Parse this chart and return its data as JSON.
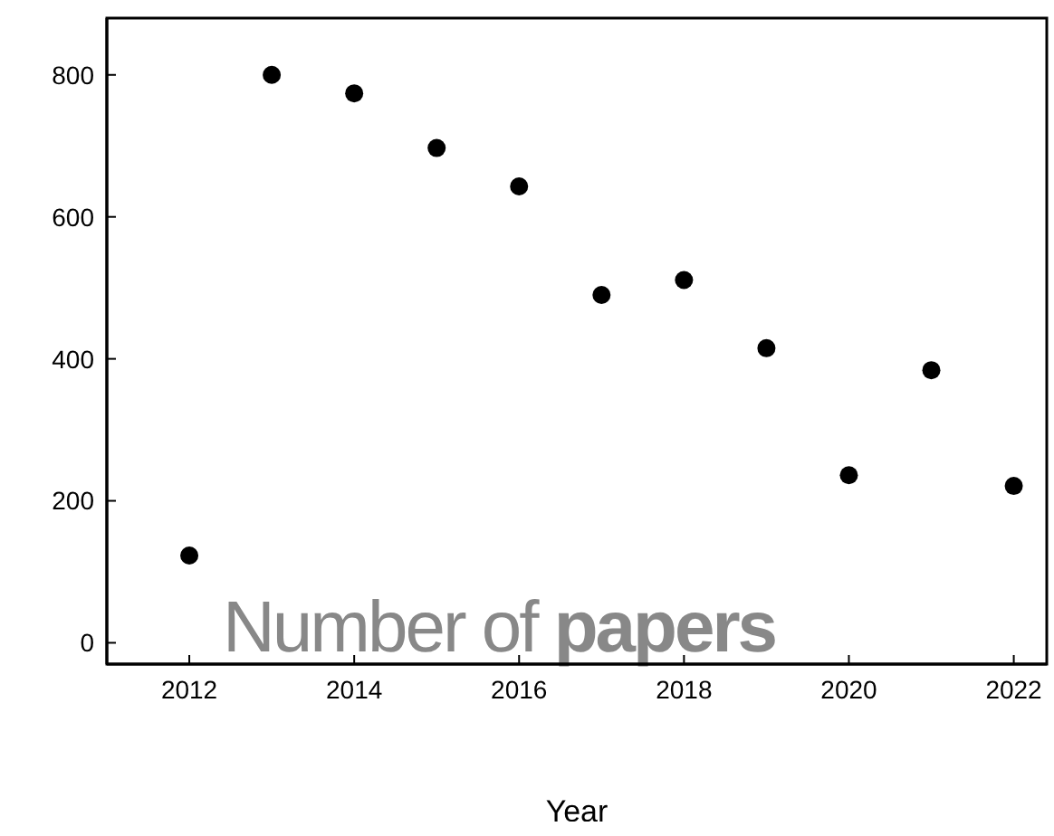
{
  "chart_data": {
    "type": "scatter",
    "xlabel": "Year",
    "x": [
      2012,
      2013,
      2014,
      2015,
      2016,
      2017,
      2018,
      2019,
      2020,
      2021,
      2022
    ],
    "series": [
      {
        "color": "#000000",
        "values": [
          123,
          800,
          774,
          697,
          643,
          490,
          511,
          415,
          236,
          384,
          221
        ]
      }
    ],
    "xlim": [
      2011,
      2022.4
    ],
    "xticks": [
      2012,
      2014,
      2016,
      2018,
      2020,
      2022
    ],
    "ylim": [
      -30,
      880
    ],
    "yticks": [
      0,
      200,
      400,
      600,
      800
    ],
    "grid": false,
    "legend": false,
    "marker": "circle",
    "annotations": [
      "Number of papers"
    ]
  }
}
